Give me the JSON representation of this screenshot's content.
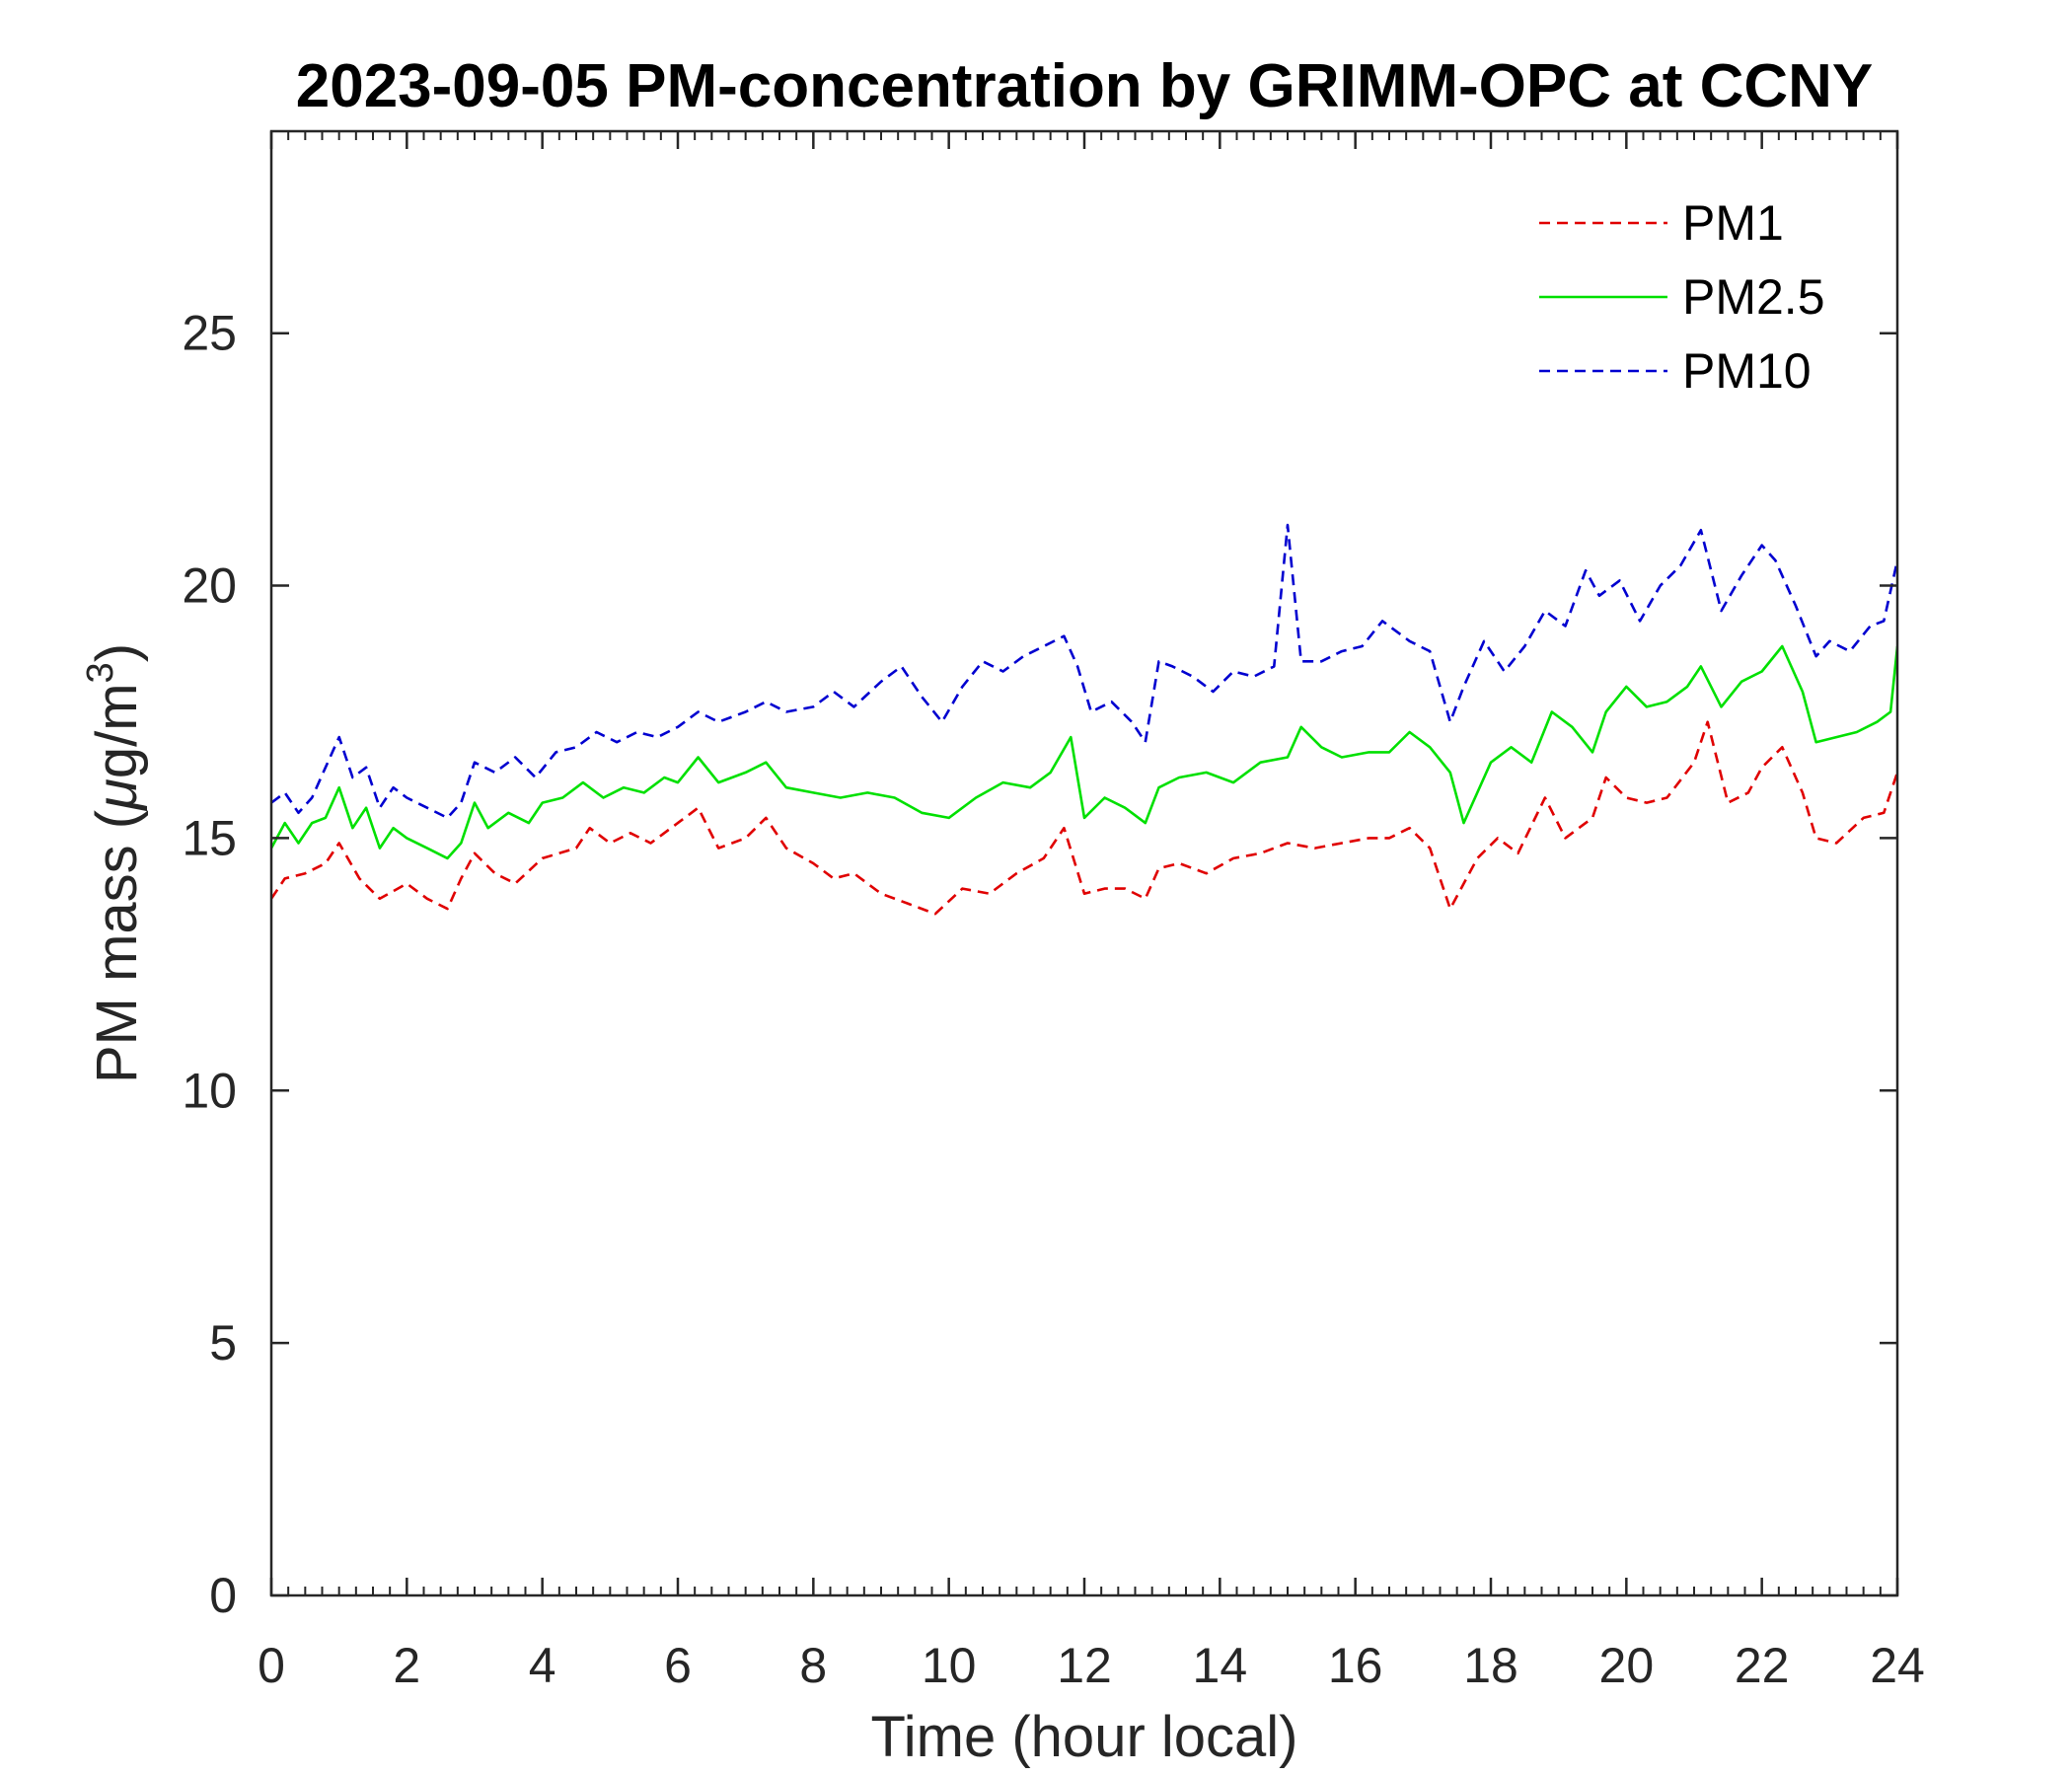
{
  "chart_data": {
    "type": "line",
    "title": "2023-09-05 PM-concentration by GRIMM-OPC at CCNY",
    "xlabel": "Time (hour local)",
    "ylabel": {
      "prefix": "PM mass (",
      "mu": "μ",
      "unit": "g/m",
      "sup": "3",
      "suffix": ")"
    },
    "xlim": [
      0,
      24
    ],
    "ylim": [
      0,
      29
    ],
    "xticks": [
      0,
      2,
      4,
      6,
      8,
      10,
      12,
      14,
      16,
      18,
      20,
      22,
      24
    ],
    "yticks": [
      0,
      5,
      10,
      15,
      20,
      25
    ],
    "legend_position": "top-right",
    "series": [
      {
        "name": "PM1",
        "color": "#e00000",
        "dash": "dashed",
        "x": [
          0,
          0.2,
          0.5,
          0.8,
          1.0,
          1.3,
          1.6,
          2.0,
          2.3,
          2.6,
          2.8,
          3.0,
          3.3,
          3.6,
          4.0,
          4.5,
          4.7,
          5.0,
          5.3,
          5.6,
          6.0,
          6.3,
          6.6,
          7.0,
          7.3,
          7.6,
          8.0,
          8.3,
          8.6,
          9.0,
          9.4,
          9.8,
          10.2,
          10.6,
          11.0,
          11.4,
          11.7,
          12.0,
          12.3,
          12.6,
          12.9,
          13.1,
          13.4,
          13.8,
          14.2,
          14.6,
          15.0,
          15.4,
          15.8,
          16.2,
          16.5,
          16.8,
          17.1,
          17.4,
          17.8,
          18.1,
          18.4,
          18.8,
          19.1,
          19.5,
          19.7,
          20.0,
          20.3,
          20.6,
          21.0,
          21.2,
          21.5,
          21.8,
          22.0,
          22.3,
          22.6,
          22.8,
          23.1,
          23.5,
          23.8,
          24.0
        ],
        "values": [
          13.8,
          14.2,
          14.3,
          14.5,
          14.9,
          14.2,
          13.8,
          14.1,
          13.8,
          13.6,
          14.2,
          14.7,
          14.3,
          14.1,
          14.6,
          14.8,
          15.2,
          14.9,
          15.1,
          14.9,
          15.3,
          15.6,
          14.8,
          15.0,
          15.4,
          14.8,
          14.5,
          14.2,
          14.3,
          13.9,
          13.7,
          13.5,
          14.0,
          13.9,
          14.3,
          14.6,
          15.2,
          13.9,
          14.0,
          14.0,
          13.8,
          14.4,
          14.5,
          14.3,
          14.6,
          14.7,
          14.9,
          14.8,
          14.9,
          15.0,
          15.0,
          15.2,
          14.8,
          13.6,
          14.6,
          15.0,
          14.7,
          15.8,
          15.0,
          15.4,
          16.2,
          15.8,
          15.7,
          15.8,
          16.5,
          17.3,
          15.7,
          15.9,
          16.4,
          16.8,
          15.9,
          15.0,
          14.9,
          15.4,
          15.5,
          16.3
        ]
      },
      {
        "name": "PM2.5",
        "color": "#00e000",
        "dash": "solid",
        "x": [
          0,
          0.2,
          0.4,
          0.6,
          0.8,
          1.0,
          1.2,
          1.4,
          1.6,
          1.8,
          2.0,
          2.3,
          2.6,
          2.8,
          3.0,
          3.2,
          3.5,
          3.8,
          4.0,
          4.3,
          4.6,
          4.9,
          5.2,
          5.5,
          5.8,
          6.0,
          6.3,
          6.6,
          7.0,
          7.3,
          7.6,
          8.0,
          8.4,
          8.8,
          9.2,
          9.6,
          10.0,
          10.4,
          10.8,
          11.2,
          11.5,
          11.8,
          12.0,
          12.3,
          12.6,
          12.9,
          13.1,
          13.4,
          13.8,
          14.2,
          14.6,
          15.0,
          15.2,
          15.5,
          15.8,
          16.2,
          16.5,
          16.8,
          17.1,
          17.4,
          17.6,
          18.0,
          18.3,
          18.6,
          18.9,
          19.2,
          19.5,
          19.7,
          20.0,
          20.3,
          20.6,
          20.9,
          21.1,
          21.4,
          21.7,
          22.0,
          22.3,
          22.6,
          22.8,
          23.1,
          23.4,
          23.7,
          23.9,
          24.0
        ],
        "values": [
          14.8,
          15.3,
          14.9,
          15.3,
          15.4,
          16.0,
          15.2,
          15.6,
          14.8,
          15.2,
          15.0,
          14.8,
          14.6,
          14.9,
          15.7,
          15.2,
          15.5,
          15.3,
          15.7,
          15.8,
          16.1,
          15.8,
          16.0,
          15.9,
          16.2,
          16.1,
          16.6,
          16.1,
          16.3,
          16.5,
          16.0,
          15.9,
          15.8,
          15.9,
          15.8,
          15.5,
          15.4,
          15.8,
          16.1,
          16.0,
          16.3,
          17.0,
          15.4,
          15.8,
          15.6,
          15.3,
          16.0,
          16.2,
          16.3,
          16.1,
          16.5,
          16.6,
          17.2,
          16.8,
          16.6,
          16.7,
          16.7,
          17.1,
          16.8,
          16.3,
          15.3,
          16.5,
          16.8,
          16.5,
          17.5,
          17.2,
          16.7,
          17.5,
          18.0,
          17.6,
          17.7,
          18.0,
          18.4,
          17.6,
          18.1,
          18.3,
          18.8,
          17.9,
          16.9,
          17.0,
          17.1,
          17.3,
          17.5,
          18.8
        ]
      },
      {
        "name": "PM10",
        "color": "#0000d0",
        "dash": "dashed",
        "x": [
          0,
          0.2,
          0.4,
          0.6,
          0.8,
          1.0,
          1.2,
          1.4,
          1.6,
          1.8,
          2.0,
          2.3,
          2.6,
          2.8,
          3.0,
          3.3,
          3.6,
          3.9,
          4.2,
          4.5,
          4.8,
          5.1,
          5.4,
          5.7,
          6.0,
          6.3,
          6.6,
          7.0,
          7.3,
          7.6,
          8.0,
          8.3,
          8.6,
          9.0,
          9.3,
          9.6,
          9.9,
          10.2,
          10.5,
          10.8,
          11.1,
          11.4,
          11.7,
          11.9,
          12.1,
          12.4,
          12.7,
          12.9,
          13.1,
          13.3,
          13.6,
          13.9,
          14.2,
          14.5,
          14.8,
          15.0,
          15.2,
          15.5,
          15.8,
          16.1,
          16.4,
          16.8,
          17.1,
          17.4,
          17.6,
          17.9,
          18.2,
          18.5,
          18.8,
          19.1,
          19.4,
          19.6,
          19.9,
          20.2,
          20.5,
          20.8,
          21.1,
          21.4,
          21.7,
          22.0,
          22.2,
          22.5,
          22.8,
          23.0,
          23.3,
          23.6,
          23.8,
          24.0
        ],
        "values": [
          15.7,
          15.9,
          15.5,
          15.8,
          16.4,
          17.0,
          16.2,
          16.4,
          15.6,
          16.0,
          15.8,
          15.6,
          15.4,
          15.7,
          16.5,
          16.3,
          16.6,
          16.2,
          16.7,
          16.8,
          17.1,
          16.9,
          17.1,
          17.0,
          17.2,
          17.5,
          17.3,
          17.5,
          17.7,
          17.5,
          17.6,
          17.9,
          17.6,
          18.1,
          18.4,
          17.8,
          17.3,
          18.0,
          18.5,
          18.3,
          18.6,
          18.8,
          19.0,
          18.4,
          17.5,
          17.7,
          17.3,
          16.9,
          18.5,
          18.4,
          18.2,
          17.9,
          18.3,
          18.2,
          18.4,
          21.2,
          18.5,
          18.5,
          18.7,
          18.8,
          19.3,
          18.9,
          18.7,
          17.3,
          18.0,
          18.9,
          18.3,
          18.8,
          19.5,
          19.2,
          20.3,
          19.8,
          20.1,
          19.3,
          20.0,
          20.4,
          21.1,
          19.5,
          20.2,
          20.8,
          20.5,
          19.6,
          18.6,
          18.9,
          18.7,
          19.2,
          19.3,
          20.5
        ]
      }
    ]
  }
}
